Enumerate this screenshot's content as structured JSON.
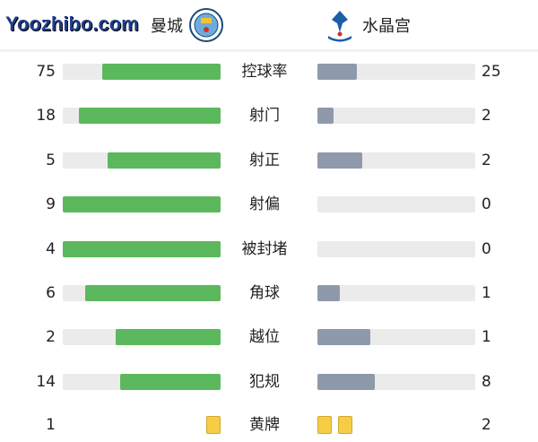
{
  "home": {
    "name": "曼城",
    "logo_text": "MANCHESTER CITY"
  },
  "away": {
    "name": "水晶宫"
  },
  "colors": {
    "home_bar": "#5cb85c",
    "away_bar": "#8e9aab",
    "track": "#ebebeb",
    "card": "#f6ce45"
  },
  "stats": [
    {
      "label": "控球率",
      "home": 75,
      "away": 25
    },
    {
      "label": "射门",
      "home": 18,
      "away": 2
    },
    {
      "label": "射正",
      "home": 5,
      "away": 2
    },
    {
      "label": "射偏",
      "home": 9,
      "away": 0
    },
    {
      "label": "被封堵",
      "home": 4,
      "away": 0
    },
    {
      "label": "角球",
      "home": 6,
      "away": 1
    },
    {
      "label": "越位",
      "home": 2,
      "away": 1
    },
    {
      "label": "犯规",
      "home": 14,
      "away": 8
    }
  ],
  "yellow_cards": {
    "label": "黄牌",
    "home": 1,
    "away": 2
  },
  "watermark": "Yoozhibo.com"
}
